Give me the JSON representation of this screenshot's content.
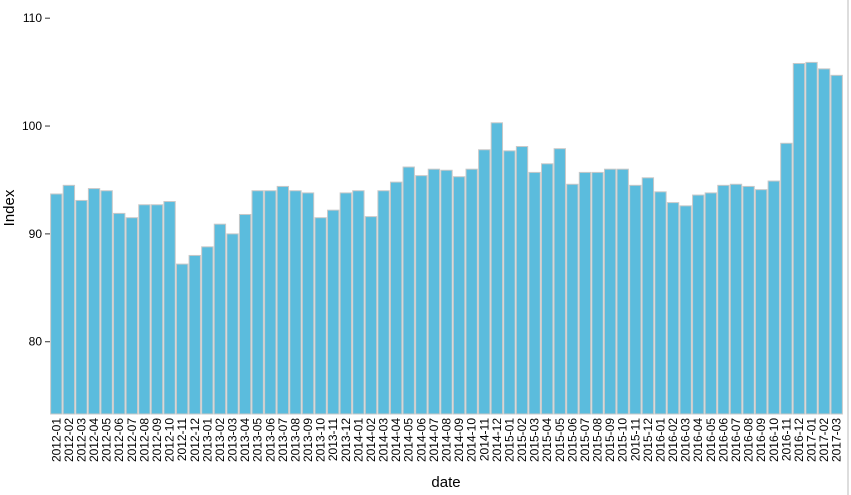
{
  "chart_data": {
    "type": "bar",
    "x_label": "date",
    "y_label": "Index",
    "categories": [
      "2012-01",
      "2012-02",
      "2012-03",
      "2012-04",
      "2012-05",
      "2012-06",
      "2012-07",
      "2012-08",
      "2012-09",
      "2012-10",
      "2012-11",
      "2012-12",
      "2013-01",
      "2013-02",
      "2013-03",
      "2013-04",
      "2013-05",
      "2013-06",
      "2013-07",
      "2013-08",
      "2013-09",
      "2013-10",
      "2013-11",
      "2013-12",
      "2014-01",
      "2014-02",
      "2014-03",
      "2014-04",
      "2014-05",
      "2014-06",
      "2014-07",
      "2014-08",
      "2014-09",
      "2014-10",
      "2014-11",
      "2014-12",
      "2015-01",
      "2015-02",
      "2015-03",
      "2015-04",
      "2015-05",
      "2015-06",
      "2015-07",
      "2015-08",
      "2015-09",
      "2015-10",
      "2015-11",
      "2015-12",
      "2016-01",
      "2016-02",
      "2016-03",
      "2016-04",
      "2016-05",
      "2016-06",
      "2016-07",
      "2016-08",
      "2016-09",
      "2016-10",
      "2016-11",
      "2016-12",
      "2017-01",
      "2017-02",
      "2017-03"
    ],
    "values": [
      93.7,
      94.5,
      93.1,
      94.2,
      94.0,
      91.9,
      91.5,
      92.7,
      92.7,
      93.0,
      87.2,
      88.0,
      88.8,
      90.9,
      90.0,
      91.8,
      94.0,
      94.0,
      94.4,
      94.0,
      93.8,
      91.5,
      92.2,
      93.8,
      94.0,
      91.6,
      94.0,
      94.8,
      96.2,
      95.4,
      96.0,
      95.9,
      95.3,
      96.0,
      97.8,
      100.3,
      97.7,
      98.1,
      95.7,
      96.5,
      97.9,
      94.6,
      95.7,
      95.7,
      96.0,
      96.0,
      94.5,
      95.2,
      93.9,
      92.9,
      92.6,
      93.6,
      93.8,
      94.5,
      94.6,
      94.4,
      94.1,
      94.9,
      98.4,
      105.8,
      105.9,
      105.3,
      104.7
    ],
    "color": "#5bbcdd",
    "edge_color": "#c8c8c8",
    "ylim": [
      73.3,
      111.5
    ],
    "yticks": [
      80,
      90,
      100,
      110
    ],
    "grid": false
  }
}
